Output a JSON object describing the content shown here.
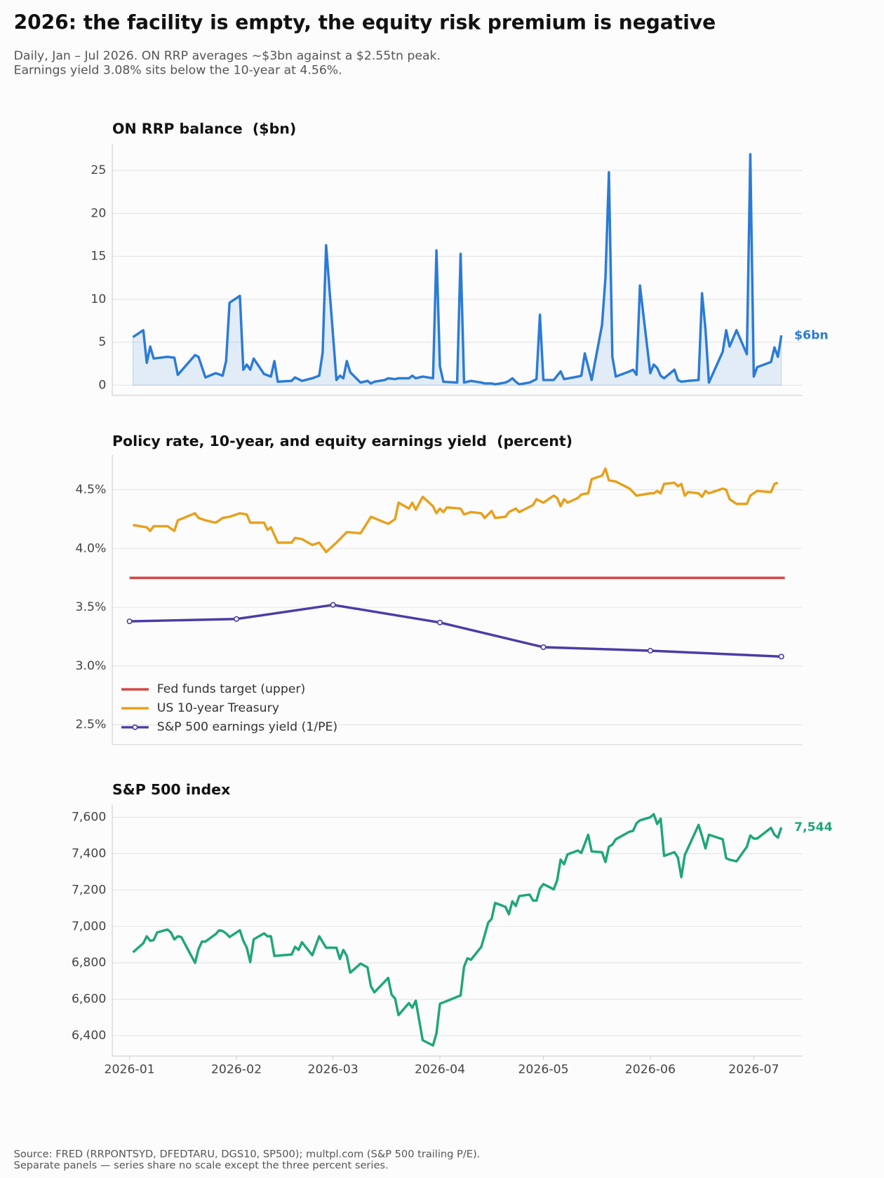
{
  "title": "2026: the facility is empty, the equity risk premium is negative",
  "subtitle": [
    "Daily, Jan – Jul 2026. ON RRP averages ~$3bn against a $2.55tn peak.",
    "Earnings yield 3.08% sits below the 10-year at 4.56%."
  ],
  "source": [
    "Source: FRED (RRPONTSYD, DFEDTARU, DGS10, SP500); multpl.com (S&P 500 trailing P/E).",
    "Separate panels — series share no scale except the three percent series."
  ],
  "chart_data": [
    {
      "type": "area",
      "title": "ON RRP balance  ($bn)",
      "color": "#2b7bd6",
      "grid": true,
      "xlim": [
        "2025-12-27",
        "2026-07-15"
      ],
      "ylim": [
        -1.2,
        28.1
      ],
      "yticks": [
        0,
        5,
        10,
        15,
        20,
        25
      ],
      "x": [
        "2026-01-02",
        "2026-01-05",
        "2026-01-06",
        "2026-01-07",
        "2026-01-08",
        "2026-01-12",
        "2026-01-14",
        "2026-01-15",
        "2026-01-20",
        "2026-01-21",
        "2026-01-23",
        "2026-01-26",
        "2026-01-28",
        "2026-01-29",
        "2026-01-30",
        "2026-02-02",
        "2026-02-03",
        "2026-02-04",
        "2026-02-05",
        "2026-02-06",
        "2026-02-09",
        "2026-02-11",
        "2026-02-12",
        "2026-02-13",
        "2026-02-17",
        "2026-02-18",
        "2026-02-20",
        "2026-02-23",
        "2026-02-25",
        "2026-02-26",
        "2026-02-27",
        "2026-03-02",
        "2026-03-03",
        "2026-03-04",
        "2026-03-05",
        "2026-03-06",
        "2026-03-09",
        "2026-03-11",
        "2026-03-12",
        "2026-03-13",
        "2026-03-16",
        "2026-03-17",
        "2026-03-19",
        "2026-03-20",
        "2026-03-23",
        "2026-03-24",
        "2026-03-25",
        "2026-03-27",
        "2026-03-30",
        "2026-03-31",
        "2026-04-01",
        "2026-04-02",
        "2026-04-06",
        "2026-04-07",
        "2026-04-08",
        "2026-04-10",
        "2026-04-13",
        "2026-04-14",
        "2026-04-16",
        "2026-04-17",
        "2026-04-20",
        "2026-04-21",
        "2026-04-22",
        "2026-04-23",
        "2026-04-24",
        "2026-04-27",
        "2026-04-29",
        "2026-04-30",
        "2026-05-01",
        "2026-05-04",
        "2026-05-06",
        "2026-05-07",
        "2026-05-11",
        "2026-05-12",
        "2026-05-13",
        "2026-05-15",
        "2026-05-18",
        "2026-05-19",
        "2026-05-20",
        "2026-05-21",
        "2026-05-22",
        "2026-05-26",
        "2026-05-27",
        "2026-05-28",
        "2026-05-29",
        "2026-06-01",
        "2026-06-02",
        "2026-06-03",
        "2026-06-04",
        "2026-06-05",
        "2026-06-08",
        "2026-06-09",
        "2026-06-10",
        "2026-06-12",
        "2026-06-15",
        "2026-06-16",
        "2026-06-17",
        "2026-06-18",
        "2026-06-22",
        "2026-06-23",
        "2026-06-24",
        "2026-06-26",
        "2026-06-29",
        "2026-06-30",
        "2026-07-01",
        "2026-07-02",
        "2026-07-06",
        "2026-07-07",
        "2026-07-08",
        "2026-07-09"
      ],
      "values": [
        5.6,
        6.4,
        2.6,
        4.5,
        3.1,
        3.3,
        3.2,
        1.2,
        3.5,
        3.3,
        0.9,
        1.4,
        1.1,
        2.8,
        9.6,
        10.4,
        1.8,
        2.4,
        1.8,
        3.1,
        1.3,
        1.0,
        2.8,
        0.4,
        0.5,
        0.9,
        0.5,
        0.8,
        1.1,
        3.8,
        16.3,
        0.6,
        1.1,
        0.8,
        2.8,
        1.5,
        0.3,
        0.5,
        0.2,
        0.4,
        0.6,
        0.8,
        0.7,
        0.8,
        0.8,
        1.1,
        0.8,
        1.0,
        0.8,
        15.7,
        2.2,
        0.4,
        0.3,
        15.3,
        0.3,
        0.5,
        0.3,
        0.2,
        0.2,
        0.1,
        0.3,
        0.5,
        0.8,
        0.4,
        0.1,
        0.3,
        0.7,
        8.2,
        0.6,
        0.6,
        1.6,
        0.7,
        1.0,
        1.1,
        3.7,
        0.6,
        7.0,
        12.5,
        24.8,
        3.3,
        1.0,
        1.6,
        1.8,
        1.2,
        11.6,
        1.4,
        2.4,
        2.0,
        1.1,
        0.8,
        1.8,
        0.6,
        0.4,
        0.5,
        0.6,
        10.7,
        6.5,
        0.3,
        3.9,
        6.4,
        4.5,
        6.4,
        3.6,
        26.9,
        1.0,
        2.1,
        2.7,
        4.4,
        3.3,
        5.8
      ],
      "last_label": "$6bn"
    },
    {
      "type": "line",
      "title": "Policy rate, 10-year, and equity earnings yield  (percent)",
      "grid": true,
      "legend": "lower left",
      "xlim": [
        "2025-12-27",
        "2026-07-15"
      ],
      "ylim": [
        2.33,
        4.8
      ],
      "yticks": [
        {
          "value": 2.5,
          "label": "2.5%"
        },
        {
          "value": 3.0,
          "label": "3.0%"
        },
        {
          "value": 3.5,
          "label": "3.5%"
        },
        {
          "value": 4.0,
          "label": "4.0%"
        },
        {
          "value": 4.5,
          "label": "4.5%"
        }
      ],
      "series": [
        {
          "name": "Fed funds target (upper)",
          "color": "#d64545",
          "x": [
            "2026-01-01",
            "2026-07-10"
          ],
          "values": [
            3.75,
            3.75
          ]
        },
        {
          "name": "US 10-year Treasury",
          "color": "#e8a01c",
          "x": [
            "2026-01-02",
            "2026-01-06",
            "2026-01-07",
            "2026-01-08",
            "2026-01-12",
            "2026-01-14",
            "2026-01-15",
            "2026-01-20",
            "2026-01-21",
            "2026-01-23",
            "2026-01-26",
            "2026-01-28",
            "2026-01-30",
            "2026-02-02",
            "2026-02-04",
            "2026-02-05",
            "2026-02-09",
            "2026-02-10",
            "2026-02-11",
            "2026-02-13",
            "2026-02-17",
            "2026-02-18",
            "2026-02-20",
            "2026-02-23",
            "2026-02-25",
            "2026-02-27",
            "2026-03-02",
            "2026-03-05",
            "2026-03-09",
            "2026-03-12",
            "2026-03-17",
            "2026-03-19",
            "2026-03-20",
            "2026-03-23",
            "2026-03-24",
            "2026-03-25",
            "2026-03-27",
            "2026-03-30",
            "2026-03-31",
            "2026-04-01",
            "2026-04-02",
            "2026-04-03",
            "2026-04-07",
            "2026-04-08",
            "2026-04-10",
            "2026-04-13",
            "2026-04-14",
            "2026-04-16",
            "2026-04-17",
            "2026-04-20",
            "2026-04-21",
            "2026-04-23",
            "2026-04-24",
            "2026-04-28",
            "2026-04-29",
            "2026-05-01",
            "2026-05-04",
            "2026-05-05",
            "2026-05-06",
            "2026-05-07",
            "2026-05-08",
            "2026-05-11",
            "2026-05-12",
            "2026-05-14",
            "2026-05-15",
            "2026-05-18",
            "2026-05-19",
            "2026-05-20",
            "2026-05-22",
            "2026-05-26",
            "2026-05-28",
            "2026-06-01",
            "2026-06-02",
            "2026-06-03",
            "2026-06-04",
            "2026-06-05",
            "2026-06-08",
            "2026-06-09",
            "2026-06-10",
            "2026-06-11",
            "2026-06-12",
            "2026-06-15",
            "2026-06-16",
            "2026-06-17",
            "2026-06-18",
            "2026-06-22",
            "2026-06-23",
            "2026-06-24",
            "2026-06-26",
            "2026-06-29",
            "2026-06-30",
            "2026-07-02",
            "2026-07-06",
            "2026-07-07",
            "2026-07-08"
          ],
          "values": [
            4.2,
            4.18,
            4.15,
            4.19,
            4.19,
            4.15,
            4.24,
            4.3,
            4.26,
            4.24,
            4.22,
            4.26,
            4.27,
            4.3,
            4.29,
            4.22,
            4.22,
            4.16,
            4.18,
            4.05,
            4.05,
            4.09,
            4.08,
            4.03,
            4.05,
            3.97,
            4.05,
            4.14,
            4.13,
            4.27,
            4.21,
            4.25,
            4.39,
            4.34,
            4.39,
            4.33,
            4.44,
            4.36,
            4.3,
            4.34,
            4.31,
            4.35,
            4.34,
            4.29,
            4.31,
            4.3,
            4.26,
            4.32,
            4.26,
            4.27,
            4.31,
            4.34,
            4.31,
            4.37,
            4.42,
            4.39,
            4.45,
            4.43,
            4.36,
            4.42,
            4.39,
            4.43,
            4.46,
            4.47,
            4.59,
            4.62,
            4.68,
            4.58,
            4.57,
            4.51,
            4.45,
            4.47,
            4.47,
            4.49,
            4.47,
            4.55,
            4.56,
            4.53,
            4.55,
            4.45,
            4.48,
            4.47,
            4.44,
            4.49,
            4.47,
            4.51,
            4.5,
            4.42,
            4.38,
            4.38,
            4.45,
            4.49,
            4.48,
            4.55,
            4.56
          ]
        },
        {
          "name": "S&P 500 earnings yield (1/PE)",
          "color": "#4b3ca6",
          "marker": true,
          "x": [
            "2026-01-01",
            "2026-02-01",
            "2026-03-01",
            "2026-04-01",
            "2026-05-01",
            "2026-06-01",
            "2026-07-09"
          ],
          "values": [
            3.38,
            3.4,
            3.52,
            3.37,
            3.16,
            3.13,
            3.08
          ]
        }
      ]
    },
    {
      "type": "line",
      "title": "S&P 500 index",
      "color": "#1fa67a",
      "grid": true,
      "xlim": [
        "2025-12-27",
        "2026-07-15"
      ],
      "ylim": [
        6288,
        7670
      ],
      "yticks": [
        {
          "value": 6400,
          "label": "6,400"
        },
        {
          "value": 6600,
          "label": "6,600"
        },
        {
          "value": 6800,
          "label": "6,800"
        },
        {
          "value": 7000,
          "label": "7,000"
        },
        {
          "value": 7200,
          "label": "7,200"
        },
        {
          "value": 7400,
          "label": "7,400"
        },
        {
          "value": 7600,
          "label": "7,600"
        }
      ],
      "xticks": [
        {
          "value": "2026-01-01",
          "label": "2026-01"
        },
        {
          "value": "2026-02-01",
          "label": "2026-02"
        },
        {
          "value": "2026-03-01",
          "label": "2026-03"
        },
        {
          "value": "2026-04-01",
          "label": "2026-04"
        },
        {
          "value": "2026-05-01",
          "label": "2026-05"
        },
        {
          "value": "2026-06-01",
          "label": "2026-06"
        },
        {
          "value": "2026-07-01",
          "label": "2026-07"
        }
      ],
      "x": [
        "2026-01-02",
        "2026-01-05",
        "2026-01-06",
        "2026-01-07",
        "2026-01-08",
        "2026-01-09",
        "2026-01-12",
        "2026-01-13",
        "2026-01-14",
        "2026-01-15",
        "2026-01-16",
        "2026-01-20",
        "2026-01-21",
        "2026-01-22",
        "2026-01-23",
        "2026-01-26",
        "2026-01-27",
        "2026-01-28",
        "2026-01-29",
        "2026-01-30",
        "2026-02-02",
        "2026-02-03",
        "2026-02-04",
        "2026-02-05",
        "2026-02-06",
        "2026-02-09",
        "2026-02-10",
        "2026-02-11",
        "2026-02-12",
        "2026-02-17",
        "2026-02-18",
        "2026-02-19",
        "2026-02-20",
        "2026-02-23",
        "2026-02-25",
        "2026-02-27",
        "2026-03-02",
        "2026-03-03",
        "2026-03-04",
        "2026-03-05",
        "2026-03-06",
        "2026-03-09",
        "2026-03-11",
        "2026-03-12",
        "2026-03-13",
        "2026-03-17",
        "2026-03-18",
        "2026-03-19",
        "2026-03-20",
        "2026-03-23",
        "2026-03-24",
        "2026-03-25",
        "2026-03-27",
        "2026-03-30",
        "2026-03-31",
        "2026-04-01",
        "2026-04-07",
        "2026-04-08",
        "2026-04-09",
        "2026-04-10",
        "2026-04-13",
        "2026-04-14",
        "2026-04-15",
        "2026-04-16",
        "2026-04-17",
        "2026-04-20",
        "2026-04-21",
        "2026-04-22",
        "2026-04-23",
        "2026-04-24",
        "2026-04-27",
        "2026-04-28",
        "2026-04-29",
        "2026-04-30",
        "2026-05-01",
        "2026-05-04",
        "2026-05-05",
        "2026-05-06",
        "2026-05-07",
        "2026-05-08",
        "2026-05-11",
        "2026-05-12",
        "2026-05-14",
        "2026-05-15",
        "2026-05-18",
        "2026-05-19",
        "2026-05-20",
        "2026-05-21",
        "2026-05-22",
        "2026-05-26",
        "2026-05-27",
        "2026-05-28",
        "2026-05-29",
        "2026-06-01",
        "2026-06-02",
        "2026-06-03",
        "2026-06-04",
        "2026-06-05",
        "2026-06-08",
        "2026-06-09",
        "2026-06-10",
        "2026-06-11",
        "2026-06-15",
        "2026-06-16",
        "2026-06-17",
        "2026-06-18",
        "2026-06-22",
        "2026-06-23",
        "2026-06-24",
        "2026-06-26",
        "2026-06-29",
        "2026-06-30",
        "2026-07-01",
        "2026-07-02",
        "2026-07-06",
        "2026-07-07",
        "2026-07-08",
        "2026-07-09"
      ],
      "values": [
        6858,
        6908,
        6946,
        6921,
        6925,
        6967,
        6983,
        6967,
        6929,
        6946,
        6942,
        6800,
        6875,
        6917,
        6917,
        6958,
        6979,
        6975,
        6962,
        6942,
        6979,
        6921,
        6883,
        6804,
        6929,
        6962,
        6946,
        6946,
        6838,
        6846,
        6888,
        6871,
        6913,
        6842,
        6946,
        6883,
        6883,
        6821,
        6871,
        6838,
        6746,
        6796,
        6775,
        6671,
        6638,
        6717,
        6625,
        6604,
        6513,
        6579,
        6554,
        6592,
        6375,
        6346,
        6413,
        6575,
        6621,
        6779,
        6825,
        6817,
        6888,
        6954,
        7021,
        7042,
        7129,
        7108,
        7067,
        7138,
        7113,
        7167,
        7175,
        7142,
        7142,
        7208,
        7233,
        7204,
        7254,
        7367,
        7342,
        7396,
        7417,
        7404,
        7504,
        7412,
        7408,
        7354,
        7438,
        7450,
        7479,
        7521,
        7525,
        7567,
        7583,
        7600,
        7617,
        7563,
        7592,
        7388,
        7408,
        7379,
        7271,
        7392,
        7558,
        7496,
        7429,
        7504,
        7479,
        7375,
        7367,
        7358,
        7438,
        7500,
        7483,
        7483,
        7542,
        7504,
        7488,
        7544
      ],
      "last_label": "7,544"
    }
  ]
}
